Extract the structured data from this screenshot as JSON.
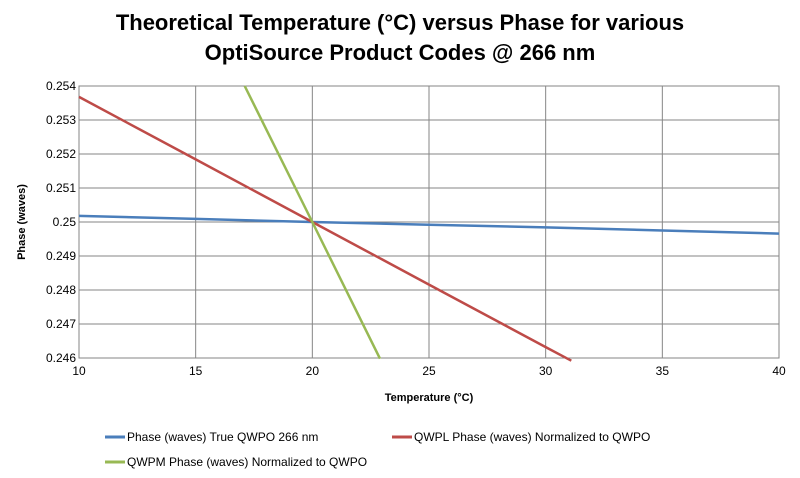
{
  "chart_data": {
    "type": "line",
    "title": [
      "Theoretical Temperature (°C) versus Phase for various",
      "OptiSource Product Codes @ 266 nm"
    ],
    "xlabel": "Temperature (°C)",
    "ylabel": "Phase (waves)",
    "xlim": [
      10,
      40
    ],
    "ylim": [
      0.246,
      0.254
    ],
    "xticks": [
      10,
      15,
      20,
      25,
      30,
      35,
      40
    ],
    "yticks": [
      0.246,
      0.247,
      0.248,
      0.249,
      0.25,
      0.251,
      0.252,
      0.253,
      0.254
    ],
    "ytick_labels": [
      "0.246",
      "0.247",
      "0.248",
      "0.249",
      "0.25",
      "0.251",
      "0.252",
      "0.253",
      "0.254"
    ],
    "grid": true,
    "legend_position": "bottom",
    "series": [
      {
        "name": "Phase (waves) True QWPO 266 nm",
        "color": "#4a7ebb",
        "x": [
          10,
          15,
          20,
          25,
          30,
          35,
          40
        ],
        "y": [
          0.25018,
          0.25009,
          0.25,
          0.24992,
          0.24984,
          0.24975,
          0.24966
        ]
      },
      {
        "name": "QWPL Phase (waves) Normalized to QWPO",
        "color": "#be4b48",
        "x": [
          10,
          15,
          20,
          25,
          30,
          31.1
        ],
        "y": [
          0.25368,
          0.25184,
          0.25,
          0.24816,
          0.24632,
          0.24592
        ]
      },
      {
        "name": "QWPM Phase (waves) Normalized to QWPO",
        "color": "#98b954",
        "x": [
          17.1,
          20,
          22.9
        ],
        "y": [
          0.254,
          0.25,
          0.24598
        ]
      }
    ]
  }
}
